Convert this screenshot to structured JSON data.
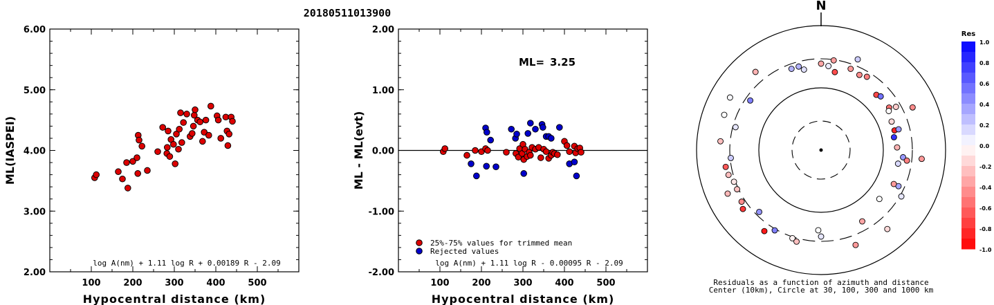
{
  "header": {
    "event_id": "20180511013900"
  },
  "chart_data": [
    {
      "type": "scatter",
      "id": "ml-vs-distance",
      "xlabel": "Hypocentral distance (km)",
      "ylabel": "ML(IASPEI)",
      "xlim": [
        0,
        600
      ],
      "ylim": [
        2.0,
        6.0
      ],
      "xticks": [
        "100",
        "200",
        "300",
        "400",
        "500"
      ],
      "yticks": [
        "2.00",
        "3.00",
        "4.00",
        "5.00",
        "6.00"
      ],
      "formula": "log A(nm) + 1.11 log R + 0.00189 R - 2.09",
      "marker_color": "#dd0000",
      "points": [
        [
          108,
          3.55
        ],
        [
          112,
          3.6
        ],
        [
          165,
          3.65
        ],
        [
          175,
          3.53
        ],
        [
          185,
          3.8
        ],
        [
          188,
          3.38
        ],
        [
          200,
          3.82
        ],
        [
          210,
          3.88
        ],
        [
          213,
          4.25
        ],
        [
          212,
          3.62
        ],
        [
          215,
          4.17
        ],
        [
          222,
          4.07
        ],
        [
          235,
          3.67
        ],
        [
          260,
          3.98
        ],
        [
          272,
          4.38
        ],
        [
          282,
          3.95
        ],
        [
          283,
          4.05
        ],
        [
          285,
          4.32
        ],
        [
          289,
          3.9
        ],
        [
          292,
          4.18
        ],
        [
          298,
          4.1
        ],
        [
          302,
          3.78
        ],
        [
          305,
          4.27
        ],
        [
          310,
          4.02
        ],
        [
          312,
          4.35
        ],
        [
          315,
          4.62
        ],
        [
          318,
          4.13
        ],
        [
          322,
          4.46
        ],
        [
          330,
          4.6
        ],
        [
          338,
          4.23
        ],
        [
          343,
          4.28
        ],
        [
          346,
          4.4
        ],
        [
          348,
          4.58
        ],
        [
          350,
          4.67
        ],
        [
          356,
          4.5
        ],
        [
          362,
          4.47
        ],
        [
          368,
          4.15
        ],
        [
          372,
          4.3
        ],
        [
          376,
          4.5
        ],
        [
          383,
          4.25
        ],
        [
          388,
          4.73
        ],
        [
          403,
          4.57
        ],
        [
          406,
          4.5
        ],
        [
          412,
          4.2
        ],
        [
          424,
          4.55
        ],
        [
          427,
          4.32
        ],
        [
          429,
          4.08
        ],
        [
          432,
          4.27
        ],
        [
          437,
          4.55
        ],
        [
          440,
          4.48
        ]
      ]
    },
    {
      "type": "scatter",
      "id": "residual-vs-distance",
      "xlabel": "Hypocentral distance (km)",
      "ylabel": "ML - ML(evt)",
      "xlim": [
        0,
        600
      ],
      "ylim": [
        -2.0,
        2.0
      ],
      "xticks": [
        "100",
        "200",
        "300",
        "400",
        "500"
      ],
      "yticks": [
        "-2.00",
        "-1.00",
        "0.00",
        "1.00",
        "2.00"
      ],
      "ml_label": "ML=",
      "ml_value": "3.25",
      "formula": "log A(nm) + 1.11 log R - 0.00095 R - 2.09",
      "legend": [
        {
          "label": "25%-75% values for trimmed mean",
          "color": "#dd0000"
        },
        {
          "label": "Rejected values",
          "color": "#0000cc"
        }
      ],
      "trimmed": [
        [
          108,
          -0.02
        ],
        [
          112,
          0.03
        ],
        [
          165,
          -0.08
        ],
        [
          185,
          0.0
        ],
        [
          200,
          -0.02
        ],
        [
          210,
          0.03
        ],
        [
          215,
          0.0
        ],
        [
          260,
          -0.03
        ],
        [
          283,
          -0.05
        ],
        [
          289,
          -0.11
        ],
        [
          292,
          0.03
        ],
        [
          298,
          -0.05
        ],
        [
          300,
          0.1
        ],
        [
          302,
          -0.15
        ],
        [
          305,
          0.02
        ],
        [
          310,
          -0.1
        ],
        [
          315,
          -0.03
        ],
        [
          318,
          -0.08
        ],
        [
          322,
          0.05
        ],
        [
          330,
          0.02
        ],
        [
          338,
          0.05
        ],
        [
          343,
          -0.12
        ],
        [
          350,
          0.02
        ],
        [
          356,
          -0.02
        ],
        [
          362,
          -0.13
        ],
        [
          368,
          -0.08
        ],
        [
          372,
          -0.03
        ],
        [
          376,
          -0.05
        ],
        [
          383,
          -0.07
        ],
        [
          400,
          0.15
        ],
        [
          406,
          0.08
        ],
        [
          412,
          -0.02
        ],
        [
          424,
          0.07
        ],
        [
          427,
          -0.04
        ],
        [
          432,
          0.03
        ],
        [
          437,
          0.04
        ],
        [
          440,
          -0.03
        ]
      ],
      "rejected": [
        [
          175,
          -0.22
        ],
        [
          188,
          -0.42
        ],
        [
          210,
          0.37
        ],
        [
          213,
          0.3
        ],
        [
          212,
          -0.26
        ],
        [
          222,
          0.17
        ],
        [
          235,
          -0.27
        ],
        [
          272,
          0.35
        ],
        [
          282,
          0.2
        ],
        [
          285,
          0.27
        ],
        [
          302,
          -0.38
        ],
        [
          312,
          0.28
        ],
        [
          318,
          0.45
        ],
        [
          330,
          0.35
        ],
        [
          346,
          0.43
        ],
        [
          348,
          0.38
        ],
        [
          356,
          0.23
        ],
        [
          362,
          0.23
        ],
        [
          368,
          0.2
        ],
        [
          388,
          0.38
        ],
        [
          412,
          -0.22
        ],
        [
          424,
          -0.19
        ],
        [
          429,
          -0.42
        ]
      ]
    },
    {
      "type": "scatter",
      "id": "azimuth-polar",
      "north_label": "N",
      "caption_line1": "Residuals as a function of azimuth and distance",
      "caption_line2": "Center (10km), Circle at 30, 100, 300 and 1000 km",
      "colorbar_title": "Res",
      "colorbar_ticks": [
        "1.0",
        "0.8",
        "0.6",
        "0.4",
        "0.2",
        "0.0",
        "-0.2",
        "-0.4",
        "-0.6",
        "-0.8",
        "-1.0"
      ],
      "stations": [
        [
          65,
          -0.45,
          0.7
        ],
        [
          95,
          -0.4,
          0.7
        ],
        [
          120,
          0.1,
          0.3
        ],
        [
          180,
          0.1,
          0.0
        ],
        [
          198,
          -0.05,
          0.3
        ],
        [
          245,
          -0.25,
          0.3
        ],
        [
          260,
          -0.65,
          0.5
        ],
        [
          237,
          -0.45,
          0.4
        ],
        [
          255,
          -0.25,
          0.45
        ],
        [
          275,
          -0.25,
          0.7
        ],
        [
          290,
          0.0,
          0.8
        ],
        [
          300,
          0.02,
          0.9
        ],
        [
          320,
          -0.3,
          0.75
        ],
        [
          345,
          0.3,
          0.0
        ],
        [
          360,
          -0.35,
          0.0
        ],
        [
          382,
          0.2,
          0.55
        ],
        [
          420,
          -0.2,
          0.0
        ],
        [
          455,
          0.4,
          -0.2
        ],
        [
          475,
          0.35,
          -0.05
        ],
        [
          500,
          -0.15,
          0.8
        ],
        [
          575,
          -0.9,
          0.6
        ],
        [
          593,
          -0.78,
          0.55
        ],
        [
          605,
          -0.28,
          0.8
        ],
        [
          625,
          0.2,
          0.2
        ],
        [
          665,
          0.5,
          0.0
        ],
        [
          708,
          0.12,
          -0.2
        ],
        [
          740,
          -0.4,
          0.0
        ],
        [
          730,
          -0.7,
          -0.35
        ],
        [
          728,
          -0.38,
          0.2
        ],
        [
          752,
          -0.5,
          0.0
        ],
        [
          765,
          -0.72,
          -0.4
        ],
        [
          778,
          -0.55,
          -0.3
        ],
        [
          795,
          -0.85,
          -0.5
        ],
        [
          817,
          -0.5,
          0.0
        ],
        [
          880,
          -0.4,
          0.7
        ],
        [
          915,
          -0.25,
          0.4
        ],
        [
          970,
          -0.1,
          0.3
        ],
        [
          1005,
          0.1,
          0.1
        ],
        [
          1060,
          0.3,
          0.0
        ],
        [
          1085,
          0.08,
          -0.1
        ],
        [
          1107,
          -0.45,
          -0.1
        ],
        [
          1128,
          0.55,
          -0.3
        ],
        [
          1140,
          -0.02,
          -0.4
        ],
        [
          1148,
          -0.15,
          -0.5
        ],
        [
          1155,
          0.4,
          -0.3
        ],
        [
          1160,
          0.8,
          -0.6
        ],
        [
          1168,
          -0.3,
          -0.5
        ],
        [
          1180,
          0.15,
          -0.4
        ],
        [
          1195,
          -0.4,
          -0.3
        ],
        [
          1210,
          0.0,
          -0.5
        ],
        [
          1230,
          -0.35,
          -0.2
        ],
        [
          1262,
          0.0,
          -0.3
        ],
        [
          1290,
          0.5,
          0.3
        ],
        [
          1305,
          0.42,
          0.05
        ]
      ]
    }
  ]
}
